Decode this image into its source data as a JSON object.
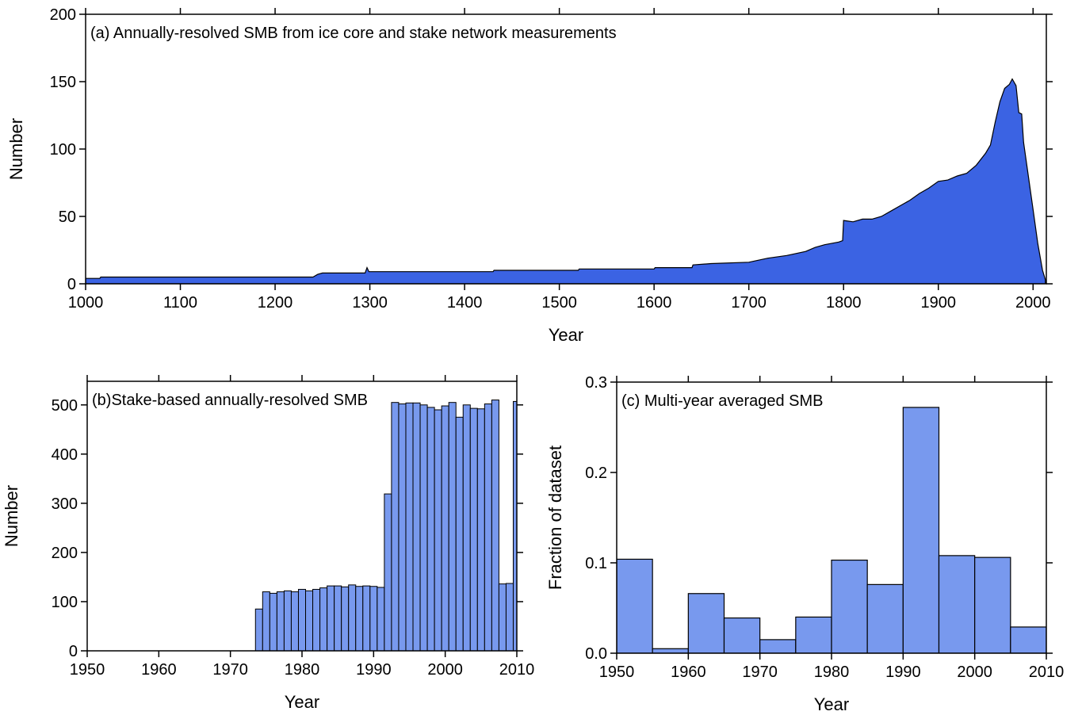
{
  "chart_data": [
    {
      "type": "area",
      "title": "(a) Annually-resolved SMB from ice core and stake network measurements",
      "xlabel": "Year",
      "ylabel": "Number",
      "color": "#3b63e3",
      "x": [
        1000,
        1015,
        1016,
        1240,
        1245,
        1250,
        1295,
        1297,
        1299,
        1430,
        1431,
        1520,
        1521,
        1600,
        1601,
        1640,
        1641,
        1660,
        1700,
        1720,
        1740,
        1760,
        1770,
        1780,
        1795,
        1799,
        1800,
        1810,
        1820,
        1830,
        1840,
        1850,
        1860,
        1870,
        1880,
        1890,
        1900,
        1910,
        1920,
        1930,
        1940,
        1950,
        1955,
        1960,
        1965,
        1970,
        1975,
        1978,
        1982,
        1985,
        1988,
        1990,
        1995,
        2000,
        2005,
        2010,
        2013
      ],
      "values": [
        4,
        4,
        5,
        5,
        7,
        8,
        8,
        12,
        9,
        9,
        10,
        10,
        11,
        11,
        12,
        12,
        14,
        15,
        16,
        19,
        21,
        24,
        27,
        29,
        31,
        32,
        47,
        46,
        48,
        48,
        50,
        54,
        58,
        62,
        67,
        71,
        76,
        77,
        80,
        82,
        88,
        97,
        103,
        120,
        135,
        145,
        148,
        152,
        147,
        127,
        126,
        105,
        80,
        55,
        30,
        10,
        3
      ],
      "xlim": [
        1000,
        2014
      ],
      "ylim": [
        0,
        200
      ],
      "xticks": [
        1000,
        1100,
        1200,
        1300,
        1400,
        1500,
        1600,
        1700,
        1800,
        1900,
        2000
      ],
      "yticks": [
        0,
        50,
        100,
        150,
        200
      ]
    },
    {
      "type": "bar",
      "title": "(b)Stake-based annually-resolved SMB",
      "xlabel": "Year",
      "ylabel": "Number",
      "color": "#7899ee",
      "x": [
        1974,
        1975,
        1976,
        1977,
        1978,
        1979,
        1980,
        1981,
        1982,
        1983,
        1984,
        1985,
        1986,
        1987,
        1988,
        1989,
        1990,
        1991,
        1992,
        1993,
        1994,
        1995,
        1996,
        1997,
        1998,
        1999,
        2000,
        2001,
        2002,
        2003,
        2004,
        2005,
        2006,
        2007,
        2008,
        2009,
        2010
      ],
      "values": [
        85,
        120,
        117,
        120,
        122,
        120,
        125,
        122,
        125,
        128,
        132,
        132,
        130,
        134,
        131,
        132,
        131,
        129,
        319,
        505,
        502,
        504,
        504,
        500,
        495,
        490,
        498,
        505,
        475,
        500,
        493,
        492,
        502,
        510,
        136,
        137,
        507
      ],
      "xlim": [
        1950,
        2010
      ],
      "ylim": [
        0,
        548
      ],
      "xticks": [
        1950,
        1960,
        1970,
        1980,
        1990,
        2000,
        2010
      ],
      "yticks": [
        0,
        100,
        200,
        300,
        400,
        500
      ]
    },
    {
      "type": "histogram",
      "title": "(c) Multi-year averaged SMB",
      "xlabel": "Year",
      "ylabel": "Fraction of dataset",
      "color": "#7899ee",
      "bins": [
        1950,
        1955,
        1960,
        1965,
        1970,
        1975,
        1980,
        1985,
        1990,
        1995,
        2000,
        2005,
        2010
      ],
      "values": [
        0.104,
        0.005,
        0.066,
        0.039,
        0.015,
        0.04,
        0.103,
        0.076,
        0.272,
        0.108,
        0.106,
        0.029
      ],
      "xlim": [
        1950,
        2010
      ],
      "ylim": [
        0,
        0.3
      ],
      "xticks": [
        1950,
        1960,
        1970,
        1980,
        1990,
        2000,
        2010
      ],
      "yticks": [
        {
          "value": 0,
          "label": "0.0"
        },
        0.1,
        0.2,
        0.3
      ]
    }
  ]
}
